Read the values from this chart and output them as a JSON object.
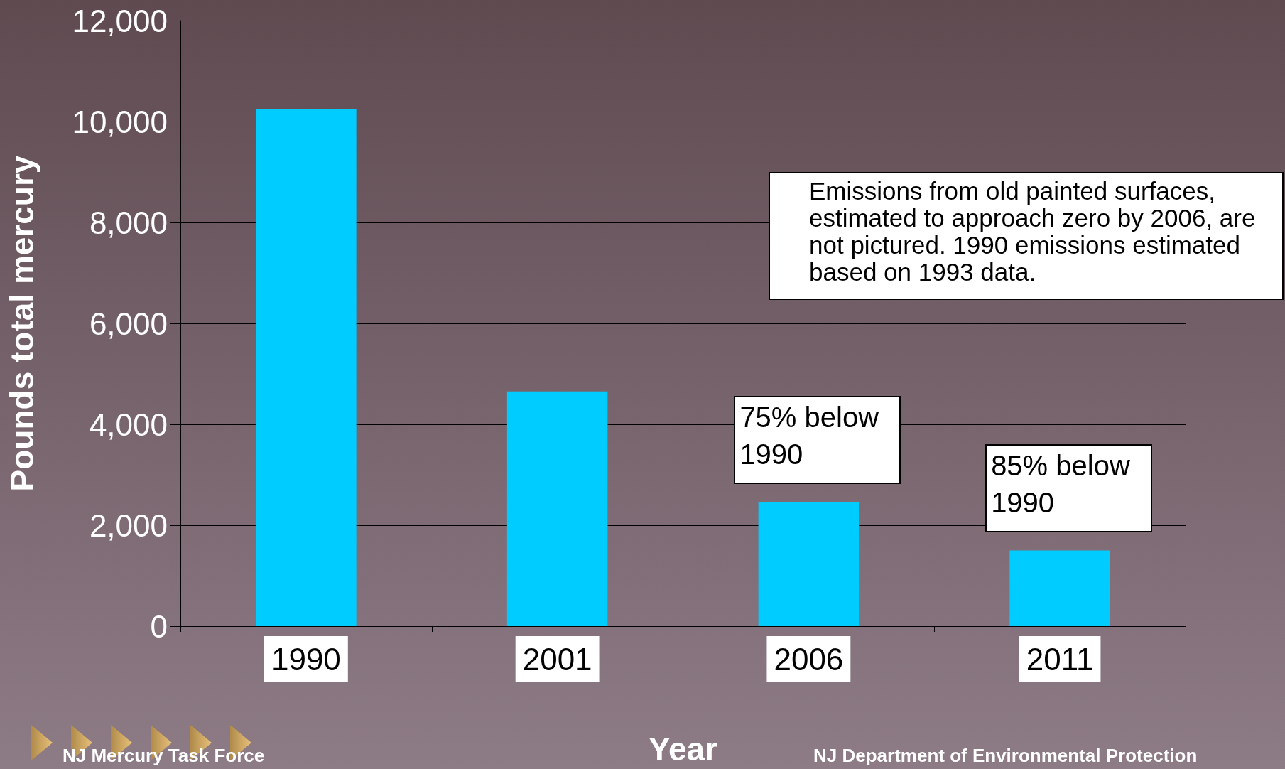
{
  "chart_data": {
    "type": "bar",
    "xlabel": "Year",
    "ylabel": "Pounds total mercury",
    "categories": [
      "1990",
      "2001",
      "2006",
      "2011"
    ],
    "values": [
      10250,
      4650,
      2450,
      1500
    ],
    "color": "#00ccff",
    "ylim": [
      0,
      12000
    ],
    "yticks": [
      {
        "value": 0,
        "label": "0"
      },
      {
        "value": 2000,
        "label": "2,000"
      },
      {
        "value": 4000,
        "label": "4,000"
      },
      {
        "value": 6000,
        "label": "6,000"
      },
      {
        "value": 8000,
        "label": "8,000"
      },
      {
        "value": 10000,
        "label": "10,000"
      },
      {
        "value": 12000,
        "label": "12,000"
      }
    ],
    "grid": "y",
    "annotations": [
      "Emissions from old painted surfaces, estimated to approach zero by 2006, are not pictured.  1990 emissions estimated based on 1993 data.",
      {
        "text": "75% below 1990",
        "x": "2006",
        "y": 2450
      },
      {
        "text": "85% below 1990",
        "x": "2011",
        "y": 1500
      },
      "NJ Mercury Task Force",
      "NJ Department of Environmental Protection"
    ]
  }
}
